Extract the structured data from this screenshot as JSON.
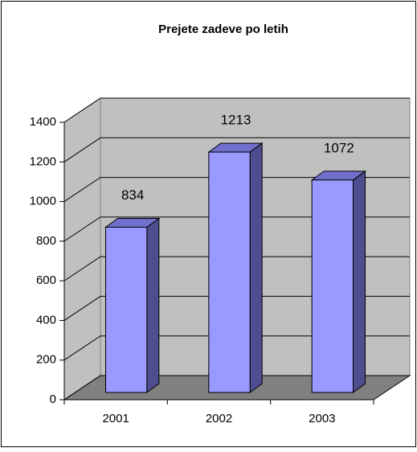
{
  "chart_data": {
    "type": "bar3d",
    "title": "Prejete zadeve po letih",
    "categories": [
      "2001",
      "2002",
      "2003"
    ],
    "values": [
      834,
      1213,
      1072
    ],
    "color": "#9999ff",
    "ylim": [
      0,
      1400
    ],
    "yticks": [
      0,
      200,
      400,
      600,
      800,
      1000,
      1200,
      1400
    ],
    "grid": true
  }
}
